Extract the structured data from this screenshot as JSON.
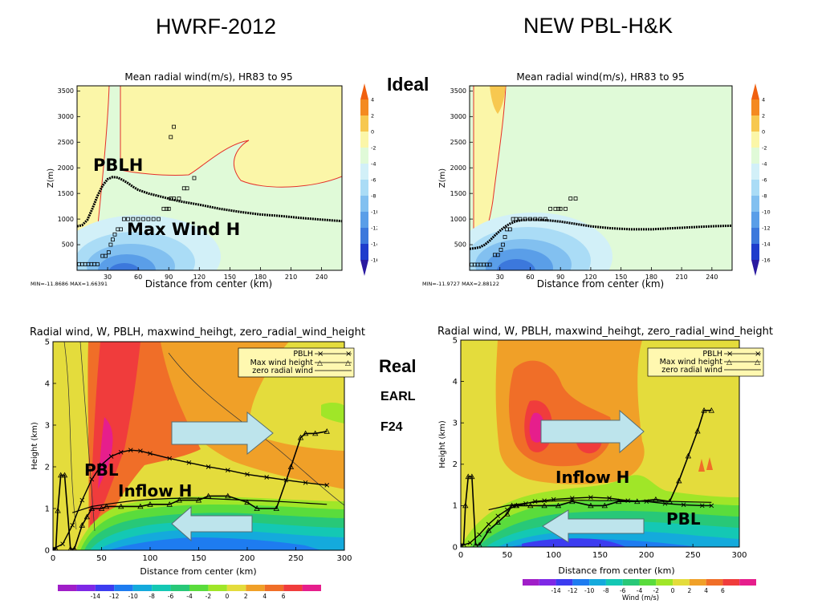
{
  "titles": {
    "left": "HWRF-2012",
    "right": "NEW PBL-H&K"
  },
  "side_labels": {
    "ideal": "Ideal",
    "real": "Real",
    "case": "EARL",
    "forecast": "F24"
  },
  "colors": {
    "ideal_bg": "#e0fad8",
    "ideal_pos": "#fbf6a8",
    "ideal_contour": "#e5302a",
    "real_bg": "#e4dc3c",
    "arrow": "#bde4ec",
    "arrow_edge": "#556e74"
  },
  "ideal_colorbar": {
    "colors": [
      "#2a1aa0",
      "#1e3ccc",
      "#3c78dc",
      "#5a9ee8",
      "#82c0f0",
      "#aadcf6",
      "#d2f0f8",
      "#e0fad8",
      "#fbf6a8",
      "#f7c850",
      "#f48a20",
      "#f06010"
    ],
    "labels": [
      "-16",
      "-14",
      "-12",
      "-10",
      "-8",
      "-6",
      "-4",
      "-2",
      "0",
      "2",
      "4"
    ]
  },
  "real_colorbar": {
    "colors": [
      "#a01ec8",
      "#7e28e6",
      "#3c3cf0",
      "#1e7cf0",
      "#14aadc",
      "#14c8b4",
      "#28c878",
      "#5adc3c",
      "#a0e628",
      "#e4dc3c",
      "#f0a028",
      "#f06e28",
      "#f03c3c",
      "#e61e8c"
    ],
    "labels": [
      "-14",
      "-12",
      "-10",
      "-8",
      "-6",
      "-4",
      "-2",
      "0",
      "2",
      "4",
      "6"
    ],
    "label": "Wind (m/s)"
  },
  "chart_data": [
    {
      "type": "heatmap",
      "title": "Mean radial wind(m/s), HR83 to 95",
      "xlabel": "Distance from center (km)",
      "ylabel": "Z(m)",
      "xlim": [
        0,
        260
      ],
      "ylim": [
        0,
        3600
      ],
      "xticks": [
        "30",
        "60",
        "90",
        "120",
        "150",
        "180",
        "210",
        "240"
      ],
      "yticks": [
        "500",
        "1000",
        "1500",
        "2000",
        "2500",
        "3000",
        "3500"
      ],
      "stats": "MIN=-11.8686  MAX=1.66391",
      "annotations": [
        "PBLH",
        "Max Wind H"
      ],
      "pblh": {
        "x": [
          0,
          5,
          10,
          15,
          20,
          25,
          30,
          35,
          40,
          45,
          50,
          55,
          60,
          70,
          80,
          90,
          100,
          120,
          140,
          160,
          180,
          200,
          220,
          240,
          260
        ],
        "y": [
          860,
          880,
          980,
          1200,
          1450,
          1650,
          1780,
          1820,
          1810,
          1760,
          1700,
          1630,
          1570,
          1500,
          1450,
          1400,
          1350,
          1280,
          1200,
          1140,
          1090,
          1060,
          1020,
          990,
          960
        ]
      },
      "maxwind": {
        "x": [
          2,
          5,
          8,
          11,
          14,
          17,
          20,
          25,
          28,
          31,
          33,
          35,
          37,
          40,
          43,
          46,
          50,
          55,
          60,
          65,
          70,
          75,
          80,
          85,
          88,
          90,
          92,
          95,
          100,
          105,
          108,
          115,
          92,
          95
        ],
        "y": [
          120,
          120,
          120,
          120,
          120,
          120,
          120,
          280,
          280,
          350,
          500,
          600,
          700,
          800,
          800,
          1000,
          1000,
          1000,
          1000,
          1000,
          1000,
          1000,
          1000,
          1200,
          1200,
          1200,
          1400,
          1400,
          1400,
          1600,
          1600,
          1800,
          2600,
          2800
        ]
      }
    },
    {
      "type": "heatmap",
      "title": "Mean radial wind(m/s), HR83 to 95",
      "xlabel": "Distance from center (km)",
      "ylabel": "Z(m)",
      "xlim": [
        0,
        260
      ],
      "ylim": [
        0,
        3600
      ],
      "xticks": [
        "30",
        "60",
        "90",
        "120",
        "150",
        "180",
        "210",
        "240"
      ],
      "yticks": [
        "500",
        "1000",
        "1500",
        "2000",
        "2500",
        "3000",
        "3500"
      ],
      "stats": "MIN=-11.9727  MAX=2.88122",
      "pblh": {
        "x": [
          0,
          5,
          10,
          15,
          20,
          25,
          30,
          35,
          40,
          45,
          50,
          55,
          60,
          70,
          80,
          90,
          100,
          120,
          140,
          160,
          180,
          200,
          220,
          240,
          260
        ],
        "y": [
          420,
          430,
          450,
          500,
          580,
          680,
          770,
          850,
          910,
          950,
          975,
          985,
          990,
          985,
          970,
          950,
          920,
          860,
          820,
          800,
          800,
          820,
          840,
          860,
          870
        ]
      },
      "maxwind": {
        "x": [
          2,
          5,
          8,
          11,
          14,
          17,
          20,
          25,
          28,
          31,
          33,
          35,
          37,
          40,
          43,
          46,
          50,
          55,
          60,
          65,
          70,
          75,
          80,
          85,
          88,
          90,
          95,
          100,
          105
        ],
        "y": [
          110,
          110,
          110,
          110,
          110,
          110,
          110,
          300,
          300,
          400,
          500,
          650,
          800,
          800,
          1000,
          1000,
          1000,
          1000,
          1000,
          1000,
          1000,
          1000,
          1200,
          1200,
          1200,
          1200,
          1200,
          1400,
          1400
        ]
      }
    },
    {
      "type": "heatmap",
      "title": "Radial wind, W, PBLH, maxwind_heihgt, zero_radial_wind_height",
      "xlabel": "Distance from center (km)",
      "ylabel": "Height (km)",
      "xlim": [
        0,
        300
      ],
      "ylim": [
        0,
        5
      ],
      "xticks": [
        "0",
        "50",
        "100",
        "150",
        "200",
        "250",
        "300"
      ],
      "yticks": [
        "0",
        "1",
        "2",
        "3",
        "4",
        "5"
      ],
      "legend": [
        "PBLH",
        "Max wind height",
        "zero radial wind"
      ],
      "legend_position": "top-right",
      "annotations": [
        "PBL",
        "Inflow H"
      ],
      "pblh": {
        "x": [
          0,
          10,
          20,
          30,
          40,
          50,
          60,
          70,
          80,
          90,
          100,
          120,
          140,
          160,
          180,
          200,
          220,
          240,
          260,
          282
        ],
        "y": [
          0.03,
          0.15,
          0.6,
          1.2,
          1.7,
          2.05,
          2.25,
          2.35,
          2.4,
          2.38,
          2.32,
          2.2,
          2.1,
          2.0,
          1.92,
          1.82,
          1.75,
          1.68,
          1.62,
          1.56
        ]
      },
      "maxwind": {
        "x": [
          0,
          3,
          5,
          8,
          12,
          18,
          22,
          30,
          35,
          40,
          50,
          55,
          70,
          90,
          100,
          120,
          130,
          150,
          160,
          180,
          200,
          210,
          230,
          245,
          255,
          260,
          270,
          282
        ],
        "y": [
          0.03,
          0.03,
          0.95,
          1.8,
          1.8,
          0.03,
          0.03,
          0.6,
          0.8,
          1.0,
          1.0,
          1.05,
          1.05,
          1.05,
          1.1,
          1.1,
          1.2,
          1.2,
          1.3,
          1.3,
          1.15,
          1.0,
          1.0,
          2.0,
          2.7,
          2.8,
          2.8,
          2.85
        ]
      },
      "zero_wind": {
        "x": [
          20,
          40,
          60,
          80,
          100,
          120,
          140,
          160,
          180,
          200,
          220,
          240,
          260,
          282
        ],
        "y": [
          0.9,
          1.05,
          1.12,
          1.18,
          1.22,
          1.24,
          1.25,
          1.24,
          1.22,
          1.2,
          1.18,
          1.16,
          1.13,
          1.1
        ]
      }
    },
    {
      "type": "heatmap",
      "title": "Radial wind, W, PBLH, maxwind_heihgt, zero_radial_wind_height",
      "xlabel": "Distance from center (km)",
      "ylabel": "Height (km)",
      "xlim": [
        0,
        300
      ],
      "ylim": [
        0,
        5
      ],
      "xticks": [
        "0",
        "50",
        "100",
        "150",
        "200",
        "250",
        "300"
      ],
      "yticks": [
        "0",
        "1",
        "2",
        "3",
        "4",
        "5"
      ],
      "legend": [
        "PBLH",
        "Max wind height",
        "zero radial wind"
      ],
      "legend_position": "top-right",
      "annotations": [
        "Inflow H",
        "PBL"
      ],
      "pblh": {
        "x": [
          0,
          10,
          20,
          30,
          40,
          50,
          60,
          70,
          80,
          90,
          100,
          120,
          140,
          160,
          180,
          200,
          220,
          240,
          260,
          270
        ],
        "y": [
          0.03,
          0.1,
          0.3,
          0.55,
          0.75,
          0.9,
          1.0,
          1.05,
          1.1,
          1.12,
          1.15,
          1.18,
          1.2,
          1.18,
          1.12,
          1.1,
          1.05,
          1.02,
          1.0,
          1.0
        ]
      },
      "maxwind": {
        "x": [
          0,
          3,
          5,
          8,
          12,
          16,
          20,
          30,
          40,
          50,
          55,
          60,
          75,
          90,
          105,
          120,
          140,
          155,
          170,
          190,
          210,
          225,
          235,
          245,
          255,
          262,
          270
        ],
        "y": [
          0.05,
          0.05,
          1.0,
          1.7,
          1.7,
          0.05,
          0.05,
          0.4,
          0.6,
          0.8,
          1.0,
          1.0,
          1.0,
          1.0,
          1.0,
          1.1,
          1.0,
          1.0,
          1.1,
          1.1,
          1.15,
          1.1,
          1.6,
          2.2,
          2.8,
          3.3,
          3.3
        ]
      },
      "zero_wind": {
        "x": [
          30,
          50,
          70,
          90,
          110,
          130,
          150,
          170,
          190,
          210,
          230,
          250,
          270
        ],
        "y": [
          0.9,
          1.0,
          1.06,
          1.1,
          1.12,
          1.13,
          1.12,
          1.12,
          1.11,
          1.1,
          1.1,
          1.09,
          1.08
        ]
      }
    }
  ]
}
